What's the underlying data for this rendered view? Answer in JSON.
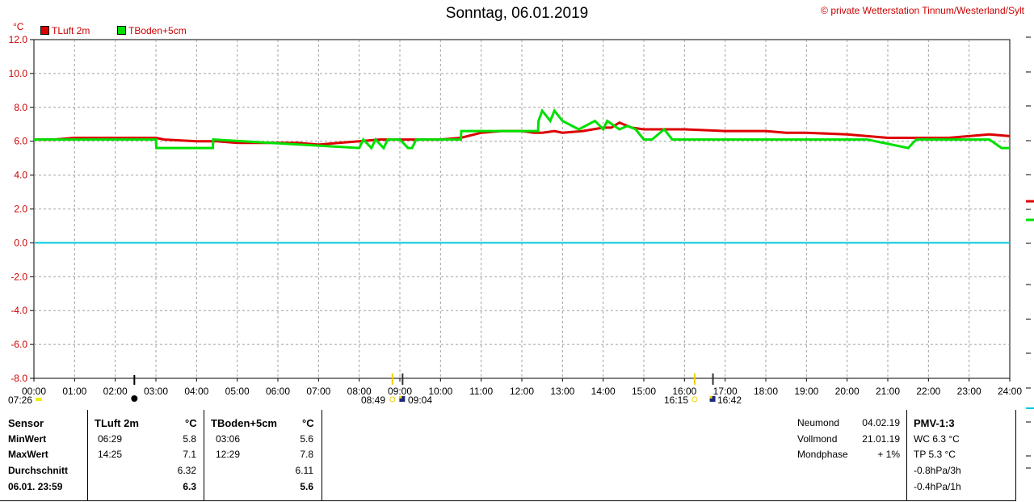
{
  "header": {
    "title": "Sonntag, 06.01.2019",
    "copyright": "© private Wetterstation Tinnum/Westerland/Sylt",
    "unit": "°C"
  },
  "colors": {
    "tluft": "#dd0000",
    "tboden": "#00e000",
    "zero": "#00c8e0",
    "grid": "#a0a0a0"
  },
  "chart_data": {
    "type": "line",
    "x_unit": "hour of day",
    "xlim": [
      0,
      24
    ],
    "ylim": [
      -8,
      12
    ],
    "grid": true,
    "x_ticks": [
      "00:00",
      "01:00",
      "02:00",
      "03:00",
      "04:00",
      "05:00",
      "06:00",
      "07:00",
      "08:00",
      "09:00",
      "10:00",
      "11:00",
      "12:00",
      "13:00",
      "14:00",
      "15:00",
      "16:00",
      "17:00",
      "18:00",
      "19:00",
      "20:00",
      "21:00",
      "22:00",
      "23:00",
      "24:00"
    ],
    "y_ticks": [
      "12.0",
      "10.0",
      "8.0",
      "6.0",
      "4.0",
      "2.0",
      "0.0",
      "-2.0",
      "-4.0",
      "-6.0",
      "-8.0"
    ],
    "series": [
      {
        "name": "TLuft 2m",
        "color": "#dd0000",
        "x": [
          0,
          0.5,
          1,
          2,
          2.5,
          3,
          3.2,
          4,
          4.5,
          5,
          5.5,
          6,
          6.5,
          7,
          7.5,
          8,
          8.5,
          9,
          9.5,
          10,
          10.5,
          11,
          11.5,
          12,
          12.3,
          12.5,
          12.8,
          13,
          13.5,
          14,
          14.2,
          14.4,
          14.7,
          15,
          15.5,
          16,
          17,
          18,
          18.5,
          19,
          20,
          21,
          21.5,
          22,
          22.5,
          23,
          23.5,
          24
        ],
        "values": [
          6.1,
          6.1,
          6.2,
          6.2,
          6.2,
          6.2,
          6.1,
          6.0,
          6.0,
          5.9,
          5.9,
          5.9,
          5.9,
          5.8,
          5.9,
          6.0,
          6.1,
          6.1,
          6.1,
          6.1,
          6.2,
          6.5,
          6.6,
          6.6,
          6.5,
          6.5,
          6.6,
          6.5,
          6.6,
          6.8,
          6.8,
          7.1,
          6.8,
          6.7,
          6.7,
          6.7,
          6.6,
          6.6,
          6.5,
          6.5,
          6.4,
          6.2,
          6.2,
          6.2,
          6.2,
          6.3,
          6.4,
          6.3
        ]
      },
      {
        "name": "TBoden+5cm",
        "color": "#00e000",
        "x": [
          0,
          1,
          2,
          3,
          3.01,
          4.4,
          4.41,
          8,
          8.1,
          8.3,
          8.4,
          8.6,
          8.7,
          9,
          9.2,
          9.3,
          9.4,
          10,
          10.5,
          10.51,
          12.4,
          12.41,
          12.5,
          12.7,
          12.8,
          13,
          13.4,
          13.8,
          14,
          14.1,
          14.4,
          14.6,
          14.8,
          15,
          15.2,
          15.5,
          15.7,
          20,
          20.5,
          21.5,
          21.7,
          22,
          23.5,
          23.8,
          24
        ],
        "values": [
          6.1,
          6.1,
          6.1,
          6.1,
          5.6,
          5.6,
          6.1,
          5.6,
          6.1,
          5.6,
          6.1,
          5.6,
          6.1,
          6.1,
          5.6,
          5.6,
          6.1,
          6.1,
          6.1,
          6.6,
          6.6,
          7.2,
          7.8,
          7.2,
          7.8,
          7.2,
          6.7,
          7.2,
          6.7,
          7.2,
          6.7,
          6.9,
          6.7,
          6.1,
          6.1,
          6.7,
          6.1,
          6.1,
          6.1,
          5.6,
          6.1,
          6.1,
          6.1,
          5.6,
          5.6
        ]
      }
    ]
  },
  "annotations": {
    "left_time": "07:26",
    "sun_times": [
      "08:49",
      "09:04",
      "16:15",
      "16:42"
    ]
  },
  "stats": {
    "headers": {
      "sensor": "Sensor",
      "tluft": "TLuft 2m",
      "tluft_unit": "°C",
      "tboden": "TBoden+5cm",
      "tboden_unit": "°C"
    },
    "rows": [
      {
        "label": "MinWert",
        "t1_time": "06:29",
        "t1_val": "5.8",
        "t2_time": "03:06",
        "t2_val": "5.6"
      },
      {
        "label": "MaxWert",
        "t1_time": "14:25",
        "t1_val": "7.1",
        "t2_time": "12:29",
        "t2_val": "7.8"
      },
      {
        "label": "Durchschnitt",
        "t1_time": "",
        "t1_val": "6.32",
        "t2_time": "",
        "t2_val": "6.11"
      },
      {
        "label": "06.01. 23:59",
        "t1_time": "",
        "t1_val": "6.3",
        "t2_time": "",
        "t2_val": "5.6"
      }
    ]
  },
  "moon": {
    "rows": [
      {
        "label": "Neumond",
        "value": "04.02.19"
      },
      {
        "label": "Vollmond",
        "value": "21.01.19"
      },
      {
        "label": "Mondphase",
        "value": "+ 1%"
      }
    ]
  },
  "pmv": {
    "title": "PMV-1:3",
    "lines": [
      "WC 6.3 °C",
      "TP 5.3 °C",
      "-0.8hPa/3h",
      "-0.4hPa/1h"
    ]
  }
}
